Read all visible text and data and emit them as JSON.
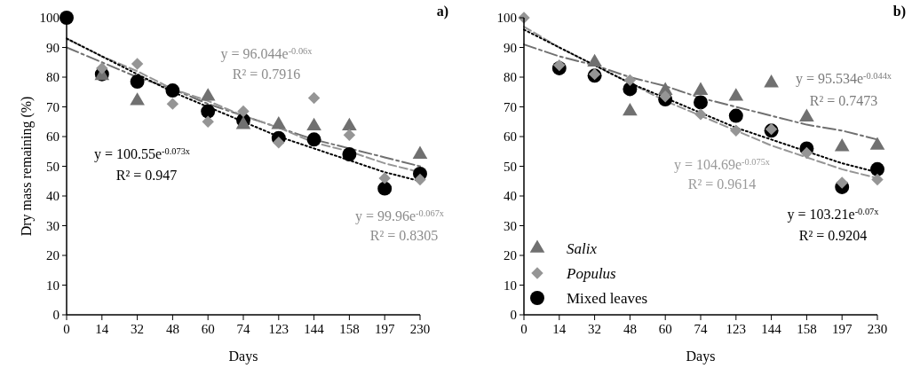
{
  "chart_data": [
    {
      "type": "scatter",
      "title": "a)",
      "xlabel": "Days",
      "ylabel": "Dry mass remaining (%)",
      "categories": [
        "0",
        "14",
        "32",
        "48",
        "60",
        "74",
        "123",
        "144",
        "158",
        "197",
        "230"
      ],
      "ylim": [
        0,
        100
      ],
      "yticks": [
        0,
        10,
        20,
        30,
        40,
        50,
        60,
        70,
        80,
        90,
        100
      ],
      "grid": false,
      "legend": false,
      "series": [
        {
          "type": "line",
          "color": "#707070",
          "line_style": "dashed",
          "marker": "none",
          "values": [
            90,
            85,
            80,
            76,
            71,
            67,
            63,
            59,
            56,
            53,
            50
          ]
        },
        {
          "type": "line",
          "color": "#959595",
          "line_style": "dashed",
          "marker": "none",
          "values": [
            93,
            87,
            82,
            76,
            72,
            67,
            63,
            58,
            55,
            51,
            48
          ]
        },
        {
          "type": "line",
          "color": "#000000",
          "line_style": "dotted",
          "marker": "none",
          "values": [
            93,
            87,
            81,
            75,
            70,
            65,
            60,
            56,
            52,
            48,
            45
          ]
        },
        {
          "type": "scatter",
          "color": "#707070",
          "marker": "triangle",
          "values": [
            null,
            80.5,
            72,
            null,
            73.5,
            64,
            64,
            63.5,
            63.5,
            null,
            54
          ]
        },
        {
          "type": "scatter",
          "color": "#959595",
          "marker": "diamond",
          "values": [
            null,
            83,
            84.5,
            71,
            65,
            68.5,
            58,
            73,
            60.5,
            46,
            45.5
          ]
        },
        {
          "type": "scatter",
          "color": "#000000",
          "marker": "circle",
          "values": [
            100,
            81,
            78.5,
            75.5,
            68.5,
            65.5,
            59.5,
            59,
            54,
            42.5,
            47.5
          ]
        }
      ],
      "annotations": [
        "y = 96.044e$^{-0.06x}$",
        "R² = 0.7916",
        "y = 100.55e$^{-0.073x}$",
        "R² = 0.947",
        "y = 99.96e$^{-0.067x}$",
        "R² = 0.8305"
      ]
    },
    {
      "type": "scatter",
      "title": "b)",
      "xlabel": "Days",
      "categories": [
        "0",
        "14",
        "32",
        "48",
        "60",
        "74",
        "123",
        "144",
        "158",
        "197",
        "230"
      ],
      "ylim": [
        0,
        100
      ],
      "yticks": [
        0,
        10,
        20,
        30,
        40,
        50,
        60,
        70,
        80,
        90,
        100
      ],
      "grid": false,
      "legend": "bottom left",
      "series": [
        {
          "type": "line",
          "color": "#707070",
          "line_style": "dashed",
          "marker": "none",
          "values": [
            91,
            87,
            84,
            80,
            77,
            73,
            70,
            67,
            64,
            62,
            59
          ]
        },
        {
          "type": "line",
          "color": "#959595",
          "line_style": "dashed",
          "marker": "none",
          "values": [
            97,
            90,
            84,
            78,
            72,
            67,
            62,
            57,
            53,
            49,
            46
          ]
        },
        {
          "type": "line",
          "color": "#000000",
          "line_style": "dotted",
          "marker": "none",
          "values": [
            96,
            90,
            84,
            78,
            73,
            68,
            63,
            59,
            55,
            51,
            48
          ]
        },
        {
          "type": "scatter",
          "name": "Salix",
          "color": "#707070",
          "marker": "triangle",
          "values": [
            null,
            null,
            85,
            68.5,
            75.5,
            75.5,
            73.5,
            78,
            66.5,
            56.5,
            57
          ]
        },
        {
          "type": "scatter",
          "name": "Populus",
          "color": "#959595",
          "marker": "diamond",
          "values": [
            100,
            84,
            81,
            79,
            73.5,
            67.5,
            62,
            62.5,
            54.5,
            44.5,
            45.5
          ]
        },
        {
          "type": "scatter",
          "name": "Mixed leaves",
          "color": "#000000",
          "marker": "circle",
          "values": [
            null,
            83,
            80.5,
            76,
            72.5,
            71.5,
            67,
            62,
            56,
            43,
            49
          ]
        }
      ],
      "annotations": [
        "y = 95.534e$^{-0.044x}$",
        "R² = 0.7473",
        "y = 104.69e$^{-0.075x}$",
        "R² = 0.9614",
        "y = 103.21e$^{-0.07x}$",
        "R² = 0.9204"
      ]
    }
  ]
}
